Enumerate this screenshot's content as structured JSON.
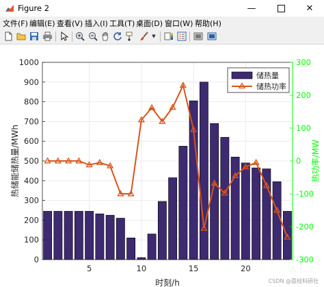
{
  "window": {
    "title": "Figure 2",
    "icon": "matlab-figure-icon"
  },
  "menu": [
    "文件(F)",
    "编辑(E)",
    "查看(V)",
    "插入(I)",
    "工具(T)",
    "桌面(D)",
    "窗口(W)",
    "帮助(H)"
  ],
  "toolbar": [
    "new-figure-icon",
    "open-file-icon",
    "save-icon",
    "print-icon",
    "pointer-icon",
    "zoom-in-icon",
    "zoom-out-icon",
    "pan-icon",
    "rotate-3d-icon",
    "data-cursor-icon",
    "brush-icon",
    "colorbar-icon",
    "legend-icon",
    "hide-plot-tools-icon",
    "show-plot-tools-icon"
  ],
  "colors": {
    "bar": "#3d2a70",
    "line": "#d95319",
    "right_axis": "#00ff00"
  },
  "watermark": "CSDN @荔枝科研社",
  "chart_data": {
    "type": "bar",
    "x": [
      1,
      2,
      3,
      4,
      5,
      6,
      7,
      8,
      9,
      10,
      11,
      12,
      13,
      14,
      15,
      16,
      17,
      18,
      19,
      20,
      21,
      22,
      23,
      24
    ],
    "xlabel": "时刻/h",
    "xticks": [
      5,
      10,
      15,
      20
    ],
    "xlim": [
      0.5,
      24.5
    ],
    "ylabel_left": "热储能储热量/MWh",
    "ylim_left": [
      0,
      1000
    ],
    "yticks_left": [
      0,
      100,
      200,
      300,
      400,
      500,
      600,
      700,
      800,
      900,
      1000
    ],
    "ylabel_right": "热功率/MW",
    "ylim_right": [
      -300,
      300
    ],
    "yticks_right": [
      -300,
      -200,
      -100,
      0,
      100,
      200,
      300
    ],
    "grid": true,
    "legend_position": "top-right",
    "series": [
      {
        "name": "储热量",
        "type": "bar",
        "axis": "left",
        "values": [
          245,
          245,
          245,
          245,
          245,
          232,
          225,
          210,
          110,
          10,
          130,
          295,
          415,
          575,
          805,
          900,
          690,
          620,
          520,
          490,
          465,
          460,
          395,
          245
        ]
      },
      {
        "name": "储热功率",
        "type": "line",
        "axis": "right",
        "marker": "triangle",
        "values": [
          0,
          0,
          0,
          0,
          -12,
          -5,
          -15,
          -100,
          -100,
          125,
          162,
          120,
          163,
          230,
          95,
          -205,
          -68,
          -98,
          -45,
          -18,
          -5,
          -75,
          -150,
          -232
        ]
      }
    ]
  }
}
